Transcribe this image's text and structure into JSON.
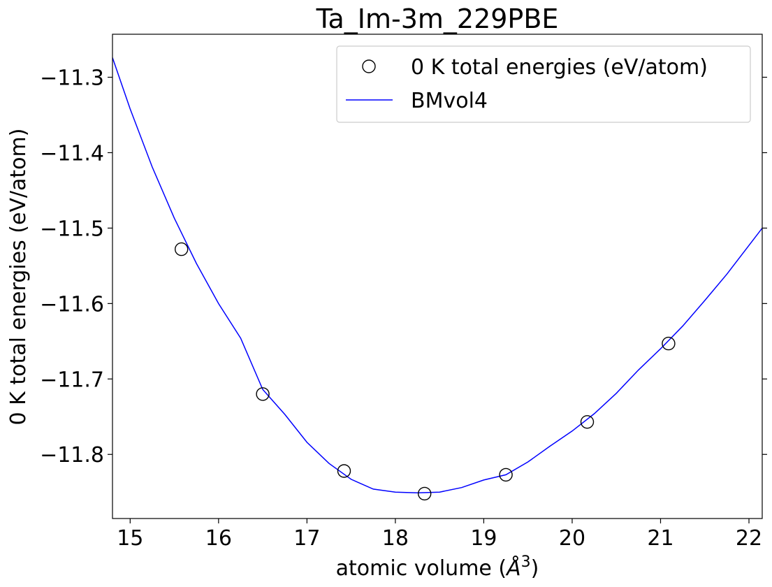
{
  "chart_data": {
    "type": "scatter",
    "title": "Ta_Im-3m_229PBE",
    "xlabel_prefix": "atomic volume (",
    "xlabel_unit": "Å",
    "xlabel_exp": "3",
    "xlabel_suffix": ")",
    "ylabel": "0 K total energies (eV/atom)",
    "xlim": [
      14.8,
      22.15
    ],
    "ylim": [
      -11.885,
      -11.243
    ],
    "xticks": [
      15,
      16,
      17,
      18,
      19,
      20,
      21,
      22
    ],
    "xtick_labels": [
      "15",
      "16",
      "17",
      "18",
      "19",
      "20",
      "21",
      "22"
    ],
    "yticks": [
      -11.3,
      -11.4,
      -11.5,
      -11.6,
      -11.7,
      -11.8
    ],
    "ytick_labels": [
      "−11.3",
      "−11.4",
      "−11.5",
      "−11.6",
      "−11.7",
      "−11.8"
    ],
    "grid": false,
    "legend_position": "top-right",
    "series": [
      {
        "name": "0 K total energies (eV/atom)",
        "kind": "scatter",
        "marker": "open-circle",
        "color": "#000000",
        "x": [
          15.58,
          16.5,
          17.42,
          18.33,
          19.25,
          20.17,
          21.09
        ],
        "y": [
          -11.528,
          -11.72,
          -11.822,
          -11.852,
          -11.827,
          -11.757,
          -11.653
        ]
      },
      {
        "name": "BMvol4",
        "kind": "line",
        "color": "#0000ff",
        "x": [
          14.8,
          15.0,
          15.25,
          15.5,
          15.75,
          16.0,
          16.25,
          16.5,
          16.75,
          17.0,
          17.25,
          17.5,
          17.75,
          18.0,
          18.25,
          18.5,
          18.75,
          19.0,
          19.25,
          19.5,
          19.75,
          20.0,
          20.25,
          20.5,
          20.75,
          21.0,
          21.25,
          21.5,
          21.75,
          22.0,
          22.15
        ],
        "y": [
          -11.274,
          -11.342,
          -11.419,
          -11.487,
          -11.547,
          -11.6,
          -11.646,
          -11.714,
          -11.747,
          -11.784,
          -11.812,
          -11.833,
          -11.846,
          -11.85,
          -11.851,
          -11.85,
          -11.844,
          -11.834,
          -11.827,
          -11.81,
          -11.789,
          -11.769,
          -11.746,
          -11.719,
          -11.688,
          -11.66,
          -11.63,
          -11.596,
          -11.561,
          -11.523,
          -11.5
        ]
      }
    ]
  }
}
